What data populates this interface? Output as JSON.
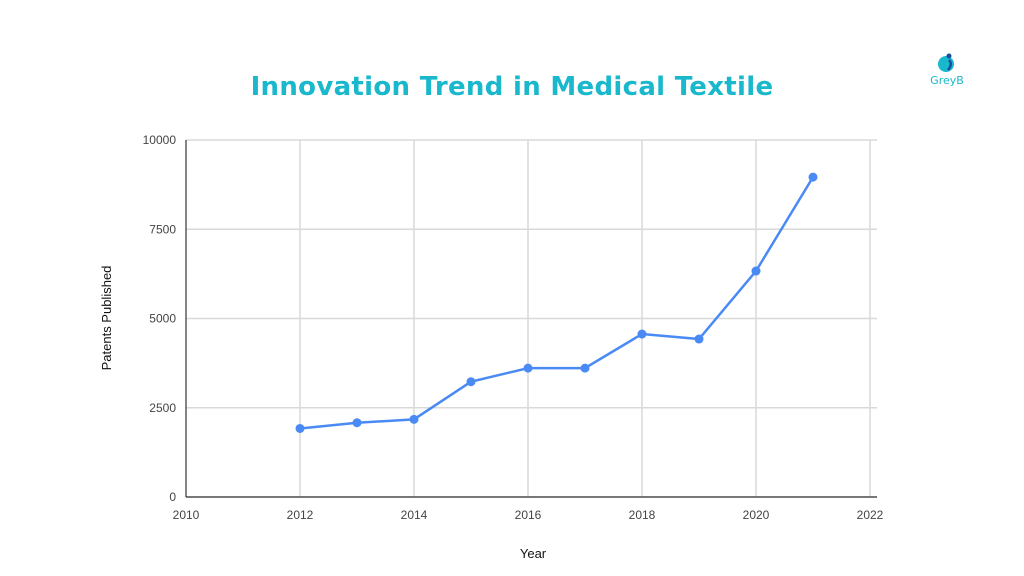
{
  "chart_data": {
    "type": "line",
    "title": "Innovation Trend in Medical Textile",
    "xlabel": "Year",
    "ylabel": "Patents Published",
    "x": [
      2012,
      2013,
      2014,
      2015,
      2016,
      2017,
      2018,
      2019,
      2020,
      2021
    ],
    "series": [
      {
        "values": [
          1920,
          2080,
          2175,
          3230,
          3610,
          3610,
          4565,
          4425,
          6330,
          8960
        ],
        "color": "#4a8af4"
      }
    ],
    "xlim": [
      2010,
      2022
    ],
    "ylim": [
      0,
      10000
    ],
    "xticks": [
      "2010",
      "2012",
      "2014",
      "2016",
      "2018",
      "2020",
      "2022"
    ],
    "yticks": [
      "0",
      "2500",
      "5000",
      "7500",
      "10000"
    ],
    "grid": true,
    "legend": "none"
  },
  "logo": {
    "text": "GreyB",
    "color": "#1ab8cc"
  }
}
